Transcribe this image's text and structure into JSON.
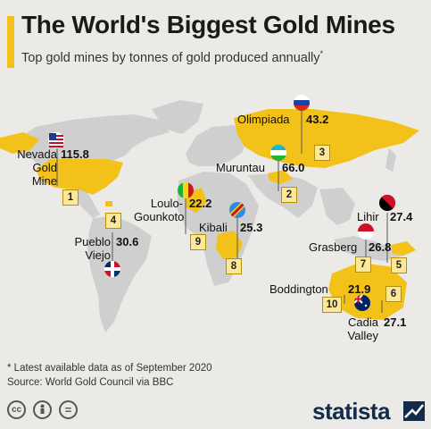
{
  "header": {
    "title": "The World's Biggest Gold Mines",
    "subtitle": "Top gold mines by tonnes of gold produced annually",
    "subtitle_mark": "*"
  },
  "mines": [
    {
      "rank": "1",
      "name": "Nevada Gold Mine",
      "tonnes": "115.8",
      "flag": "usa-flag-icon"
    },
    {
      "rank": "2",
      "name": "Muruntau",
      "tonnes": "66.0",
      "flag": "uzbekistan-flag-icon"
    },
    {
      "rank": "3",
      "name": "Olimpiada",
      "tonnes": "43.2",
      "flag": "russia-flag-icon"
    },
    {
      "rank": "4",
      "name": "Pueblo Viejo",
      "tonnes": "30.6",
      "flag": "dominican-republic-flag-icon"
    },
    {
      "rank": "5",
      "name": "Lihir",
      "tonnes": "27.4",
      "flag": "papua-new-guinea-flag-icon"
    },
    {
      "rank": "6",
      "name": "Cadia Valley",
      "tonnes": "27.1",
      "flag": "australia-flag-icon"
    },
    {
      "rank": "7",
      "name": "Grasberg",
      "tonnes": "26.8",
      "flag": "indonesia-flag-icon"
    },
    {
      "rank": "8",
      "name": "Kibali",
      "tonnes": "25.3",
      "flag": "dr-congo-flag-icon"
    },
    {
      "rank": "9",
      "name": "Loulo-Gounkoto",
      "tonnes": "22.2",
      "flag": "mali-flag-icon"
    },
    {
      "rank": "10",
      "name": "Boddington",
      "tonnes": "21.9",
      "flag": "australia-flag-icon"
    }
  ],
  "labels": {
    "nevada": {
      "line1": "Nevada",
      "line2": "Gold",
      "line3": "Mine"
    },
    "olimpiada": "Olimpiada",
    "muruntau": "Muruntau",
    "loulo": {
      "line1": "Loulo-",
      "line2": "Gounkoto"
    },
    "kibali": "Kibali",
    "pueblo": {
      "line1": "Pueblo",
      "line2": "Viejo"
    },
    "lihir": "Lihir",
    "grasberg": "Grasberg",
    "boddington": "Boddington",
    "cadia": {
      "line1": "Cadia",
      "line2": "Valley"
    }
  },
  "colors": {
    "highlight": "#f2c21b",
    "land": "#cfcfcf",
    "background": "#eceae6",
    "brand": "#132b4a"
  },
  "footer": {
    "note": "* Latest available data as of September 2020",
    "source": "Source: World Gold Council via BBC",
    "license_icons": [
      "cc-icon",
      "attribution-icon",
      "no-derivatives-icon"
    ],
    "cc_text": "cc",
    "nd_text": "="
  },
  "brand": {
    "name": "statista"
  }
}
